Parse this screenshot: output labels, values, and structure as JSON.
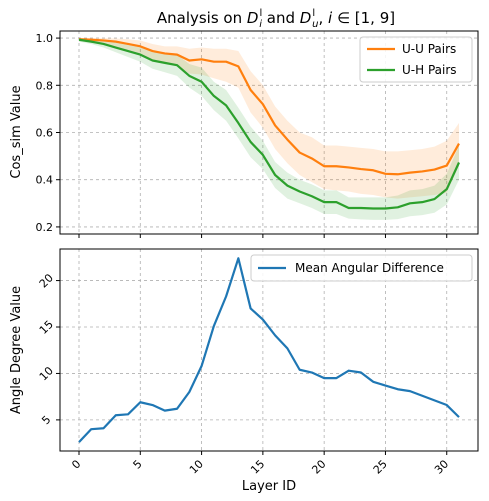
{
  "chart_data": [
    {
      "type": "line",
      "title_parts": {
        "text1": "Analysis on ",
        "var1": "D",
        "var1_sub": "i",
        "var1_sup": "l",
        "text2": " and ",
        "var2": "D",
        "var2_sub": "u",
        "var2_sup": "l",
        "text3": ", ",
        "var3": "i",
        "text4": " ∈ [1, 9]"
      },
      "xlabel": "",
      "ylabel": "Cos_sim Value",
      "xlim": [
        -1.55,
        32.55
      ],
      "ylim": [
        0.17,
        1.03
      ],
      "yticks": [
        "0.2",
        "0.4",
        "0.6",
        "0.8",
        "1.0"
      ],
      "grid": true,
      "legend_position": "top-right",
      "series": [
        {
          "name": "U-U Pairs",
          "color": "#ff7f0e",
          "x": [
            0,
            1,
            2,
            3,
            4,
            5,
            6,
            7,
            8,
            9,
            10,
            11,
            12,
            13,
            14,
            15,
            16,
            17,
            18,
            19,
            20,
            21,
            22,
            23,
            24,
            25,
            26,
            27,
            28,
            29,
            30,
            31
          ],
          "y": [
            0.995,
            0.993,
            0.99,
            0.985,
            0.975,
            0.965,
            0.945,
            0.935,
            0.93,
            0.905,
            0.91,
            0.9,
            0.9,
            0.88,
            0.78,
            0.72,
            0.63,
            0.57,
            0.515,
            0.49,
            0.457,
            0.457,
            0.452,
            0.445,
            0.44,
            0.425,
            0.423,
            0.43,
            0.435,
            0.443,
            0.46,
            0.553
          ],
          "lower": [
            0.99,
            0.985,
            0.975,
            0.965,
            0.95,
            0.935,
            0.91,
            0.895,
            0.88,
            0.85,
            0.845,
            0.83,
            0.815,
            0.79,
            0.685,
            0.62,
            0.53,
            0.47,
            0.42,
            0.39,
            0.36,
            0.355,
            0.35,
            0.34,
            0.335,
            0.325,
            0.32,
            0.325,
            0.33,
            0.335,
            0.345,
            0.46
          ],
          "upper": [
            1.0,
            1.0,
            1.0,
            0.998,
            0.995,
            0.99,
            0.975,
            0.965,
            0.965,
            0.955,
            0.96,
            0.955,
            0.955,
            0.945,
            0.86,
            0.8,
            0.71,
            0.65,
            0.6,
            0.58,
            0.545,
            0.545,
            0.54,
            0.535,
            0.53,
            0.52,
            0.52,
            0.525,
            0.53,
            0.54,
            0.565,
            0.64
          ]
        },
        {
          "name": "U-H Pairs",
          "color": "#2ca02c",
          "x": [
            0,
            1,
            2,
            3,
            4,
            5,
            6,
            7,
            8,
            9,
            10,
            11,
            12,
            13,
            14,
            15,
            16,
            17,
            18,
            19,
            20,
            21,
            22,
            23,
            24,
            25,
            26,
            27,
            28,
            29,
            30,
            31
          ],
          "y": [
            0.993,
            0.985,
            0.975,
            0.96,
            0.945,
            0.93,
            0.905,
            0.895,
            0.885,
            0.84,
            0.815,
            0.755,
            0.715,
            0.64,
            0.56,
            0.505,
            0.42,
            0.375,
            0.35,
            0.33,
            0.305,
            0.305,
            0.28,
            0.28,
            0.278,
            0.278,
            0.283,
            0.3,
            0.305,
            0.318,
            0.36,
            0.473
          ],
          "lower": [
            0.985,
            0.975,
            0.96,
            0.94,
            0.92,
            0.9,
            0.87,
            0.855,
            0.84,
            0.79,
            0.755,
            0.695,
            0.65,
            0.575,
            0.495,
            0.445,
            0.365,
            0.32,
            0.3,
            0.28,
            0.255,
            0.255,
            0.235,
            0.232,
            0.23,
            0.23,
            0.233,
            0.245,
            0.25,
            0.26,
            0.295,
            0.4
          ],
          "upper": [
            1.0,
            0.995,
            0.99,
            0.98,
            0.97,
            0.96,
            0.94,
            0.935,
            0.93,
            0.89,
            0.875,
            0.815,
            0.78,
            0.705,
            0.625,
            0.565,
            0.475,
            0.43,
            0.4,
            0.38,
            0.355,
            0.355,
            0.325,
            0.325,
            0.325,
            0.325,
            0.333,
            0.355,
            0.36,
            0.375,
            0.425,
            0.545
          ]
        }
      ]
    },
    {
      "type": "line",
      "title": "",
      "xlabel": "Layer ID",
      "ylabel": "Angle Degree Value",
      "xlim": [
        -1.55,
        32.55
      ],
      "ylim": [
        1.65,
        23.4
      ],
      "xticks": [
        "0",
        "5",
        "10",
        "15",
        "20",
        "25",
        "30"
      ],
      "yticks": [
        "5",
        "10",
        "15",
        "20"
      ],
      "grid": true,
      "legend_position": "top-right",
      "series": [
        {
          "name": "Mean Angular Difference",
          "color": "#1f77b4",
          "x": [
            0,
            1,
            2,
            3,
            4,
            5,
            6,
            7,
            8,
            9,
            10,
            11,
            12,
            13,
            14,
            15,
            16,
            17,
            18,
            19,
            20,
            21,
            22,
            23,
            24,
            25,
            26,
            27,
            28,
            29,
            30,
            31
          ],
          "y": [
            2.6,
            4.0,
            4.1,
            5.5,
            5.6,
            6.9,
            6.6,
            6.0,
            6.2,
            8.0,
            10.8,
            15.1,
            18.3,
            22.4,
            17.0,
            15.8,
            14.1,
            12.7,
            10.4,
            10.1,
            9.5,
            9.5,
            10.3,
            10.1,
            9.1,
            8.7,
            8.3,
            8.1,
            7.6,
            7.1,
            6.6,
            5.3
          ]
        }
      ]
    }
  ]
}
